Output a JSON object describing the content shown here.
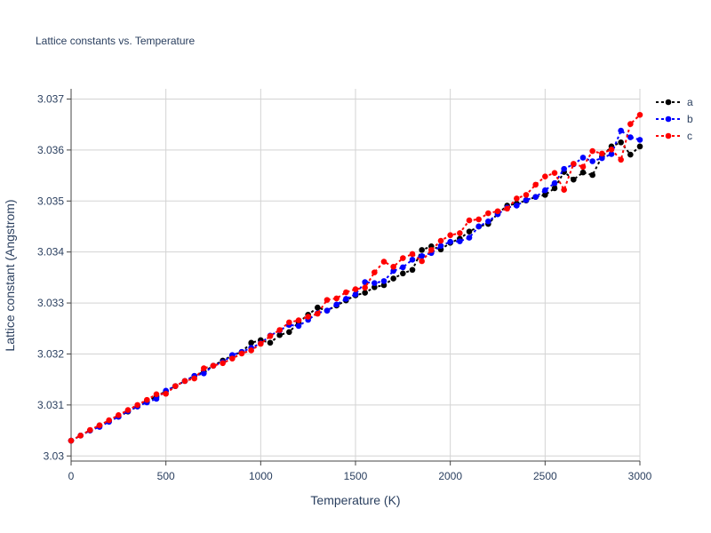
{
  "chart_data": {
    "type": "line",
    "title": "Lattice constants vs. Temperature",
    "xlabel": "Temperature (K)",
    "ylabel": "Lattice constant (Angstrom)",
    "xlim": [
      0,
      3000
    ],
    "ylim": [
      3.0299,
      3.0372
    ],
    "xticks": [
      0,
      500,
      1000,
      1500,
      2000,
      2500,
      3000
    ],
    "xtick_labels": [
      "0",
      "500",
      "1000",
      "1500",
      "2000",
      "2500",
      "3000"
    ],
    "yticks": [
      3.03,
      3.031,
      3.032,
      3.033,
      3.034,
      3.035,
      3.036,
      3.037
    ],
    "ytick_labels": [
      "3.03",
      "3.031",
      "3.032",
      "3.033",
      "3.034",
      "3.035",
      "3.036",
      "3.037"
    ],
    "grid": true,
    "legend_position": "top-right",
    "x": [
      0,
      50,
      100,
      150,
      200,
      250,
      300,
      350,
      400,
      450,
      500,
      550,
      600,
      650,
      700,
      750,
      800,
      850,
      900,
      950,
      1000,
      1050,
      1100,
      1150,
      1200,
      1250,
      1300,
      1350,
      1400,
      1450,
      1500,
      1550,
      1600,
      1650,
      1700,
      1750,
      1800,
      1850,
      1900,
      1950,
      2000,
      2050,
      2100,
      2150,
      2200,
      2250,
      2300,
      2350,
      2400,
      2450,
      2500,
      2550,
      2600,
      2650,
      2700,
      2750,
      2800,
      2850,
      2900,
      2950,
      3000
    ],
    "series": [
      {
        "name": "a",
        "color": "#000000",
        "values": [
          3.0303,
          3.0304,
          3.0305,
          3.0306,
          3.03068,
          3.03077,
          3.03087,
          3.03097,
          3.03107,
          3.03117,
          3.03127,
          3.03137,
          3.03147,
          3.03157,
          3.03165,
          3.03177,
          3.03187,
          3.03197,
          3.03204,
          3.03222,
          3.03227,
          3.03222,
          3.03237,
          3.03243,
          3.03262,
          3.03277,
          3.03291,
          3.03285,
          3.03295,
          3.03305,
          3.03315,
          3.0332,
          3.03331,
          3.03335,
          3.03348,
          3.03358,
          3.03365,
          3.03404,
          3.03411,
          3.03405,
          3.03418,
          3.03426,
          3.0344,
          3.0345,
          3.03455,
          3.03475,
          3.03491,
          3.03495,
          3.03501,
          3.03508,
          3.03512,
          3.03525,
          3.03557,
          3.03542,
          3.03556,
          3.03551,
          3.03587,
          3.03607,
          3.03615,
          3.03591,
          3.03607
        ]
      },
      {
        "name": "b",
        "color": "#0000ff",
        "values": [
          3.0303,
          3.0304,
          3.0305,
          3.03057,
          3.03067,
          3.03077,
          3.03088,
          3.03097,
          3.03105,
          3.03112,
          3.03128,
          3.03137,
          3.03147,
          3.03157,
          3.03162,
          3.03177,
          3.03184,
          3.03198,
          3.03204,
          3.03212,
          3.03221,
          3.03236,
          3.03246,
          3.03257,
          3.03255,
          3.03267,
          3.0328,
          3.03285,
          3.03297,
          3.03308,
          3.03317,
          3.03341,
          3.03339,
          3.03343,
          3.03363,
          3.0337,
          3.03385,
          3.03392,
          3.03398,
          3.03412,
          3.0342,
          3.03421,
          3.03428,
          3.0345,
          3.0346,
          3.03474,
          3.03487,
          3.03491,
          3.03502,
          3.03508,
          3.03521,
          3.03535,
          3.03563,
          3.03572,
          3.03585,
          3.03578,
          3.03584,
          3.03592,
          3.03638,
          3.03625,
          3.0362
        ]
      },
      {
        "name": "c",
        "color": "#ff0000",
        "values": [
          3.0303,
          3.0304,
          3.03051,
          3.0306,
          3.0307,
          3.0308,
          3.0309,
          3.031,
          3.0311,
          3.03121,
          3.03122,
          3.03137,
          3.03147,
          3.03152,
          3.03172,
          3.03177,
          3.03182,
          3.03191,
          3.03201,
          3.03207,
          3.0322,
          3.03235,
          3.03247,
          3.03262,
          3.03266,
          3.03273,
          3.03279,
          3.03306,
          3.03309,
          3.03321,
          3.03327,
          3.0333,
          3.0336,
          3.03381,
          3.03371,
          3.03388,
          3.03396,
          3.03382,
          3.03404,
          3.03422,
          3.03433,
          3.03437,
          3.03462,
          3.03464,
          3.03476,
          3.0348,
          3.03485,
          3.03505,
          3.03512,
          3.03532,
          3.03548,
          3.03555,
          3.03522,
          3.03573,
          3.03567,
          3.03598,
          3.03593,
          3.03601,
          3.03581,
          3.03651,
          3.03669
        ]
      }
    ]
  }
}
